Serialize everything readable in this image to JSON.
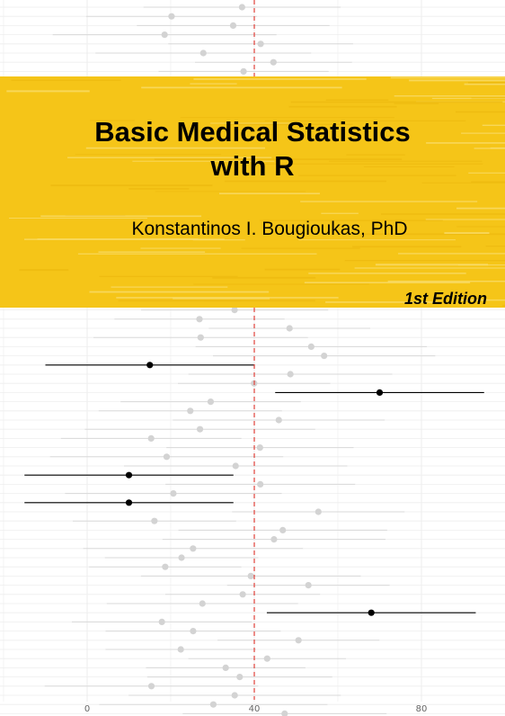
{
  "cover": {
    "title_line1": "Basic Medical Statistics",
    "title_line2": "with R",
    "author": "Konstantinos I. Bougioukas, PhD",
    "edition": "1st Edition"
  },
  "colors": {
    "band": "#f5c518",
    "reference_line": "#e0413a",
    "grey_point": "#d3d3d3",
    "black_point": "#000000"
  },
  "chart_data": {
    "type": "scatter",
    "title": "",
    "xlabel": "",
    "ylabel": "",
    "x_ticks": [
      "0",
      "40",
      "80"
    ],
    "xlim": [
      -21,
      99
    ],
    "reference_x": 40,
    "highlighted_intervals": [
      {
        "estimate": 15,
        "lower": -10,
        "upper": 40
      },
      {
        "estimate": 70,
        "lower": 45,
        "upper": 95
      },
      {
        "estimate": 10,
        "lower": -15,
        "upper": 35
      },
      {
        "estimate": 10,
        "lower": -15,
        "upper": 35
      },
      {
        "estimate": 68,
        "lower": 43,
        "upper": 93
      }
    ]
  }
}
